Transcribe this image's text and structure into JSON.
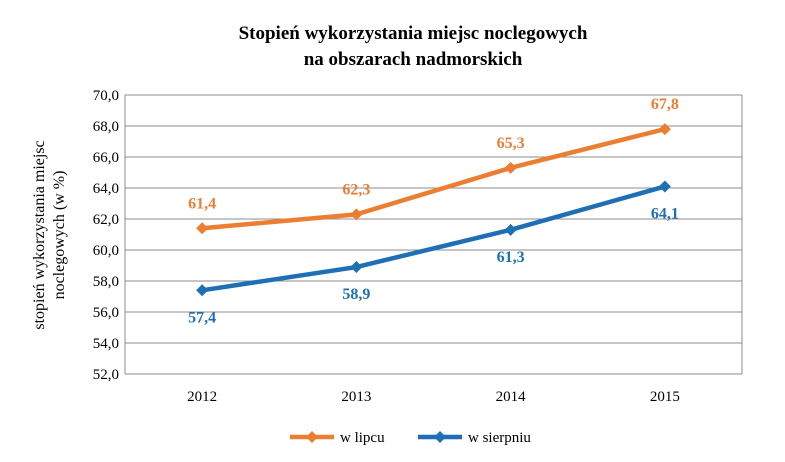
{
  "chart_data": {
    "type": "line",
    "title_line1": "Stopień wykorzystania miejsc noclegowych",
    "title_line2": "na obszarach nadmorskich",
    "ylabel_line1": "stopień wykorzystania miejsc",
    "ylabel_line2": "noclegowych (w %)",
    "xlabel": "",
    "categories": [
      "2012",
      "2013",
      "2014",
      "2015"
    ],
    "ylim": [
      52.0,
      70.0
    ],
    "ystep": 2.0,
    "yticks": [
      "52,0",
      "54,0",
      "56,0",
      "58,0",
      "60,0",
      "62,0",
      "64,0",
      "66,0",
      "68,0",
      "70,0"
    ],
    "grid": true,
    "legend_position": "bottom",
    "series": [
      {
        "name": "w lipcu",
        "color": "#ED7D31",
        "values": [
          61.4,
          62.3,
          65.3,
          67.8
        ],
        "labels": [
          "61,4",
          "62,3",
          "65,3",
          "67,8"
        ],
        "label_position": "above"
      },
      {
        "name": "w sierpniu",
        "color": "#1F6FB5",
        "values": [
          57.4,
          58.9,
          61.3,
          64.1
        ],
        "labels": [
          "57,4",
          "58,9",
          "61,3",
          "64,1"
        ],
        "label_position": "below"
      }
    ]
  }
}
